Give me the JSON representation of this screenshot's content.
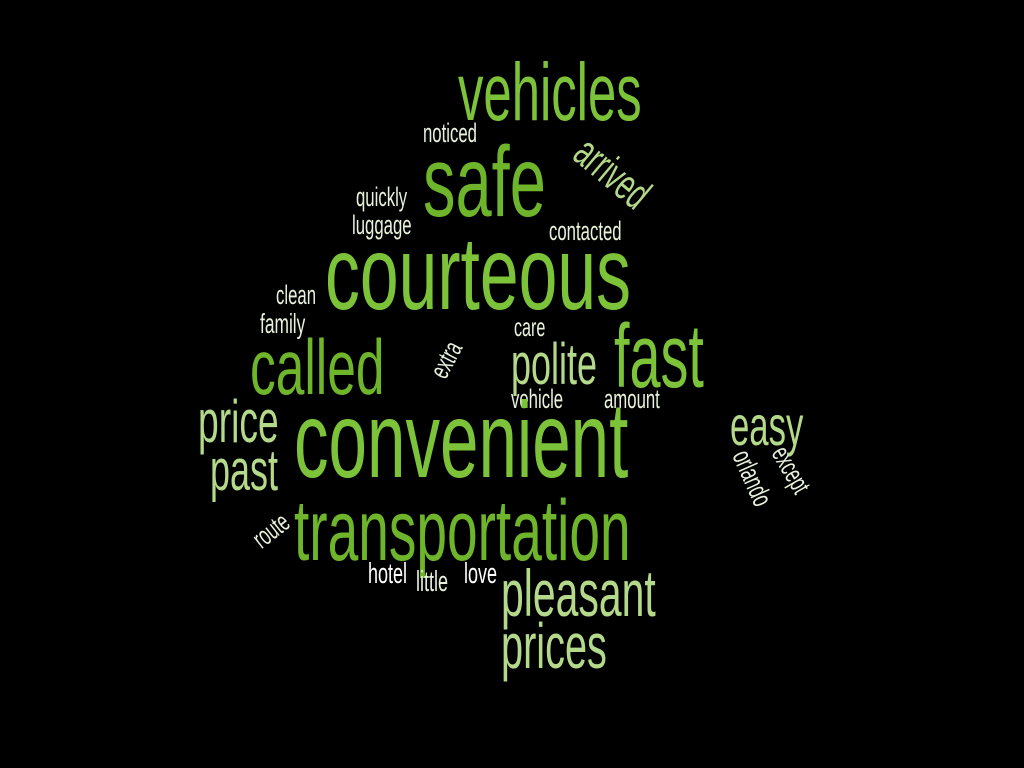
{
  "palette": {
    "background": "#000000",
    "dark_green": "#6fb52c",
    "green": "#7cc33a",
    "light_green": "#b5d98a",
    "pale": "#e8f2dc",
    "white": "#ffffff"
  },
  "words": [
    {
      "text": "vehicles",
      "name": "word-vehicles"
    },
    {
      "text": "noticed",
      "name": "word-noticed"
    },
    {
      "text": "safe",
      "name": "word-safe"
    },
    {
      "text": "arrived",
      "name": "word-arrived"
    },
    {
      "text": "quickly",
      "name": "word-quickly"
    },
    {
      "text": "luggage",
      "name": "word-luggage"
    },
    {
      "text": "contacted",
      "name": "word-contacted"
    },
    {
      "text": "courteous",
      "name": "word-courteous"
    },
    {
      "text": "clean",
      "name": "word-clean"
    },
    {
      "text": "family",
      "name": "word-family"
    },
    {
      "text": "extra",
      "name": "word-extra"
    },
    {
      "text": "care",
      "name": "word-care"
    },
    {
      "text": "called",
      "name": "word-called"
    },
    {
      "text": "polite",
      "name": "word-polite"
    },
    {
      "text": "fast",
      "name": "word-fast"
    },
    {
      "text": "price",
      "name": "word-price"
    },
    {
      "text": "vehicle",
      "name": "word-vehicle"
    },
    {
      "text": "amount",
      "name": "word-amount"
    },
    {
      "text": "convenient",
      "name": "word-convenient"
    },
    {
      "text": "easy",
      "name": "word-easy"
    },
    {
      "text": "past",
      "name": "word-past"
    },
    {
      "text": "orlando",
      "name": "word-orlando"
    },
    {
      "text": "except",
      "name": "word-except"
    },
    {
      "text": "route",
      "name": "word-route"
    },
    {
      "text": "transportation",
      "name": "word-transportation"
    },
    {
      "text": "hotel",
      "name": "word-hotel"
    },
    {
      "text": "little",
      "name": "word-little"
    },
    {
      "text": "love",
      "name": "word-love"
    },
    {
      "text": "pleasant",
      "name": "word-pleasant"
    },
    {
      "text": "prices",
      "name": "word-prices"
    }
  ]
}
